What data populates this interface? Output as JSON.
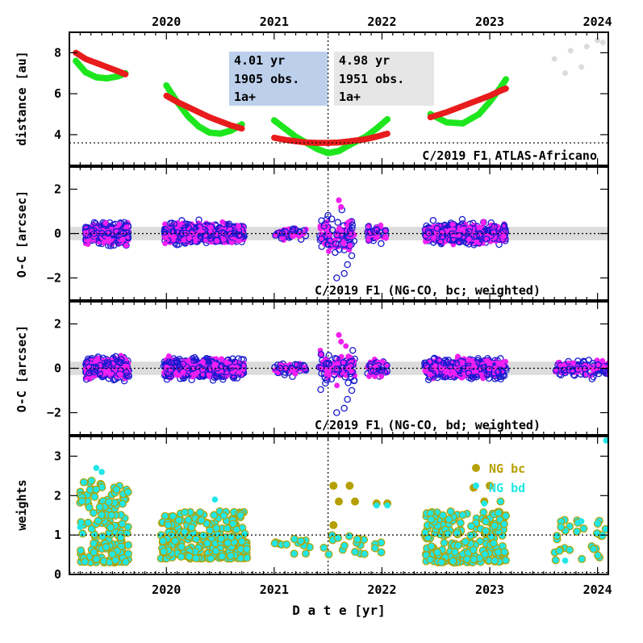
{
  "figure": {
    "title_panel1": "C/2019 F1 ATLAS-Africano",
    "title_panel2": "C/2019 F1 (NG-CO, bc; weighted)",
    "title_panel3": "C/2019 F1 (NG-CO, bd; weighted)",
    "xlabel": "D a t e [yr]",
    "ylabel_distance": "distance [au]",
    "ylabel_oc": "O-C [arcsec]",
    "ylabel_weights": "weights",
    "box1": {
      "line1": "4.01 yr",
      "line2": "1905 obs.",
      "line3": "1a+",
      "color": "#bcd0ec"
    },
    "box2": {
      "line1": "4.98 yr",
      "line2": "1951 obs.",
      "line3": "1a+",
      "color": "#e6e6e6"
    },
    "legend_bc": "NG bc",
    "legend_bd": "NG bd",
    "colors": {
      "geo": "#1ee61e",
      "helio": "#e81c1c",
      "future": "#dcdcdc",
      "bc": "#f020f0",
      "bd": "#1a1ad0",
      "w_bc": "#b4a000",
      "w_bd": "#22e6e6"
    }
  },
  "chart_data": [
    {
      "type": "scatter",
      "panel": "distance",
      "ylabel": "distance [au]",
      "xlim": [
        2019.1,
        2024.1
      ],
      "ylim": [
        2.5,
        9.0
      ],
      "x_ticks": [
        "2020",
        "2021",
        "2022",
        "2023",
        "2024"
      ],
      "y_ticks": [
        4,
        6,
        8
      ],
      "reference_line_y": 3.6,
      "epoch_line_x": 2021.5,
      "series": [
        {
          "role": "geocentric",
          "points": [
            [
              2019.16,
              7.6
            ],
            [
              2019.25,
              7.05
            ],
            [
              2019.35,
              6.8
            ],
            [
              2019.45,
              6.75
            ],
            [
              2019.55,
              6.85
            ],
            [
              2019.62,
              7.0
            ],
            [
              2020.0,
              6.4
            ],
            [
              2020.1,
              5.6
            ],
            [
              2020.2,
              4.9
            ],
            [
              2020.3,
              4.4
            ],
            [
              2020.4,
              4.1
            ],
            [
              2020.5,
              4.05
            ],
            [
              2020.6,
              4.2
            ],
            [
              2020.7,
              4.5
            ],
            [
              2021.0,
              4.7
            ],
            [
              2021.1,
              4.3
            ],
            [
              2021.2,
              3.9
            ],
            [
              2021.3,
              3.6
            ],
            [
              2021.4,
              3.3
            ],
            [
              2021.5,
              3.1
            ],
            [
              2021.6,
              3.2
            ],
            [
              2021.7,
              3.5
            ],
            [
              2021.85,
              3.9
            ],
            [
              2021.95,
              4.3
            ],
            [
              2022.05,
              4.75
            ],
            [
              2022.45,
              5.0
            ],
            [
              2022.6,
              4.6
            ],
            [
              2022.75,
              4.55
            ],
            [
              2022.9,
              5.0
            ],
            [
              2023.0,
              5.6
            ],
            [
              2023.1,
              6.3
            ],
            [
              2023.15,
              6.7
            ]
          ]
        },
        {
          "role": "heliocentric",
          "points": [
            [
              2019.16,
              8.0
            ],
            [
              2019.25,
              7.7
            ],
            [
              2019.35,
              7.5
            ],
            [
              2019.45,
              7.3
            ],
            [
              2019.55,
              7.1
            ],
            [
              2019.62,
              6.95
            ],
            [
              2020.0,
              5.9
            ],
            [
              2020.1,
              5.6
            ],
            [
              2020.2,
              5.35
            ],
            [
              2020.3,
              5.1
            ],
            [
              2020.4,
              4.85
            ],
            [
              2020.5,
              4.65
            ],
            [
              2020.6,
              4.45
            ],
            [
              2020.7,
              4.3
            ],
            [
              2021.0,
              3.85
            ],
            [
              2021.1,
              3.75
            ],
            [
              2021.2,
              3.68
            ],
            [
              2021.3,
              3.62
            ],
            [
              2021.4,
              3.6
            ],
            [
              2021.5,
              3.6
            ],
            [
              2021.6,
              3.62
            ],
            [
              2021.7,
              3.68
            ],
            [
              2021.85,
              3.78
            ],
            [
              2021.95,
              3.9
            ],
            [
              2022.05,
              4.05
            ],
            [
              2022.45,
              4.85
            ],
            [
              2022.6,
              5.1
            ],
            [
              2022.75,
              5.4
            ],
            [
              2022.9,
              5.7
            ],
            [
              2023.0,
              5.9
            ],
            [
              2023.1,
              6.15
            ],
            [
              2023.15,
              6.25
            ]
          ]
        },
        {
          "role": "future",
          "points": [
            [
              2023.6,
              7.7
            ],
            [
              2023.75,
              8.1
            ],
            [
              2023.9,
              8.3
            ],
            [
              2023.7,
              7.0
            ],
            [
              2023.85,
              7.3
            ],
            [
              2024.0,
              8.6
            ],
            [
              2024.05,
              8.5
            ]
          ]
        }
      ]
    },
    {
      "type": "scatter",
      "panel": "O-C bc",
      "ylabel": "O-C [arcsec]",
      "xlim": [
        2019.1,
        2024.1
      ],
      "ylim": [
        -3.0,
        3.0
      ],
      "y_ticks": [
        -2,
        0,
        2
      ],
      "band": [
        -0.3,
        0.3
      ],
      "clusters": [
        {
          "x_range": [
            2019.25,
            2019.65
          ],
          "spread": 0.45,
          "count": 240
        },
        {
          "x_range": [
            2019.98,
            2020.72
          ],
          "spread": 0.4,
          "count": 380
        },
        {
          "x_range": [
            2021.0,
            2021.3
          ],
          "spread": 0.25,
          "count": 30
        },
        {
          "x_range": [
            2021.42,
            2021.75
          ],
          "spread": 0.7,
          "count": 60
        },
        {
          "x_range": [
            2021.85,
            2022.05
          ],
          "spread": 0.4,
          "count": 30
        },
        {
          "x_range": [
            2022.4,
            2023.15
          ],
          "spread": 0.4,
          "count": 380
        }
      ]
    },
    {
      "type": "scatter",
      "panel": "O-C bd",
      "ylabel": "O-C [arcsec]",
      "xlim": [
        2019.1,
        2024.1
      ],
      "ylim": [
        -3.0,
        3.0
      ],
      "y_ticks": [
        -2,
        0,
        2
      ],
      "band": [
        -0.3,
        0.3
      ],
      "clusters": [
        {
          "x_range": [
            2019.25,
            2019.65
          ],
          "spread": 0.45,
          "count": 240
        },
        {
          "x_range": [
            2019.98,
            2020.72
          ],
          "spread": 0.4,
          "count": 380
        },
        {
          "x_range": [
            2021.0,
            2021.3
          ],
          "spread": 0.25,
          "count": 30
        },
        {
          "x_range": [
            2021.42,
            2021.75
          ],
          "spread": 0.7,
          "count": 60
        },
        {
          "x_range": [
            2021.85,
            2022.05
          ],
          "spread": 0.4,
          "count": 30
        },
        {
          "x_range": [
            2022.4,
            2023.15
          ],
          "spread": 0.4,
          "count": 380
        },
        {
          "x_range": [
            2023.6,
            2024.1
          ],
          "spread": 0.35,
          "count": 70
        }
      ]
    },
    {
      "type": "scatter",
      "panel": "weights",
      "ylabel": "weights",
      "xlim": [
        2019.1,
        2024.1
      ],
      "ylim": [
        0.0,
        3.5
      ],
      "y_ticks": [
        0,
        1,
        2,
        3
      ],
      "reference_line_y": 1.0,
      "series": [
        {
          "name": "NG bc",
          "points": [
            [
              2021.55,
              2.25
            ],
            [
              2021.7,
              2.25
            ],
            [
              2021.6,
              1.85
            ],
            [
              2021.75,
              1.85
            ],
            [
              2021.95,
              1.8
            ],
            [
              2022.05,
              1.8
            ],
            [
              2021.55,
              1.25
            ],
            [
              2022.95,
              1.85
            ],
            [
              2023.1,
              1.85
            ],
            [
              2023.0,
              2.25
            ],
            [
              2022.85,
              2.2
            ]
          ]
        },
        {
          "name": "NG bd",
          "points": [
            [
              2019.2,
              1.2
            ],
            [
              2019.35,
              2.7
            ],
            [
              2019.4,
              2.6
            ],
            [
              2020.45,
              1.9
            ],
            [
              2021.95,
              1.75
            ],
            [
              2022.05,
              1.75
            ],
            [
              2022.95,
              1.8
            ],
            [
              2023.1,
              1.85
            ],
            [
              2023.85,
              1.35
            ],
            [
              2024.0,
              1.3
            ],
            [
              2024.08,
              3.4
            ],
            [
              2023.7,
              0.35
            ],
            [
              2024.05,
              1.0
            ]
          ]
        }
      ],
      "clusters": [
        {
          "x_range": [
            2019.2,
            2019.65
          ],
          "low": 0.3,
          "high": 2.4,
          "count": 160
        },
        {
          "x_range": [
            2019.95,
            2020.75
          ],
          "low": 0.4,
          "high": 1.6,
          "count": 260
        },
        {
          "x_range": [
            2021.0,
            2021.35
          ],
          "low": 0.5,
          "high": 0.9,
          "count": 14
        },
        {
          "x_range": [
            2021.45,
            2022.05
          ],
          "low": 0.5,
          "high": 1.0,
          "count": 20
        },
        {
          "x_range": [
            2022.4,
            2023.15
          ],
          "low": 0.3,
          "high": 1.6,
          "count": 220
        },
        {
          "x_range": [
            2023.6,
            2024.1
          ],
          "low": 0.3,
          "high": 1.4,
          "count": 30
        }
      ]
    }
  ]
}
